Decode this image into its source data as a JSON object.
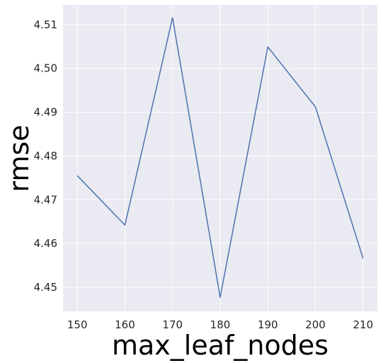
{
  "chart_data": {
    "type": "line",
    "title": "",
    "xlabel": "max_leaf_nodes",
    "ylabel": "rmse",
    "x": [
      150,
      160,
      170,
      180,
      190,
      200,
      210
    ],
    "series": [
      {
        "values": [
          4.4755,
          4.4642,
          4.5116,
          4.4477,
          4.5049,
          4.4912,
          4.4566
        ]
      }
    ],
    "xticks": [
      150,
      160,
      170,
      180,
      190,
      200,
      210
    ],
    "yticks": [
      4.45,
      4.46,
      4.47,
      4.48,
      4.49,
      4.5,
      4.51
    ],
    "xtick_labels": [
      "150",
      "160",
      "170",
      "180",
      "190",
      "200",
      "210"
    ],
    "ytick_labels": [
      "4.45",
      "4.46",
      "4.47",
      "4.48",
      "4.49",
      "4.50",
      "4.51"
    ],
    "xlim": [
      147,
      213
    ],
    "ylim": [
      4.4445,
      4.5145
    ],
    "grid": true,
    "legend": "none",
    "colors": {
      "plot_background": "#eaeaf2",
      "grid": "#ffffff",
      "line": "#4c72b0"
    }
  }
}
